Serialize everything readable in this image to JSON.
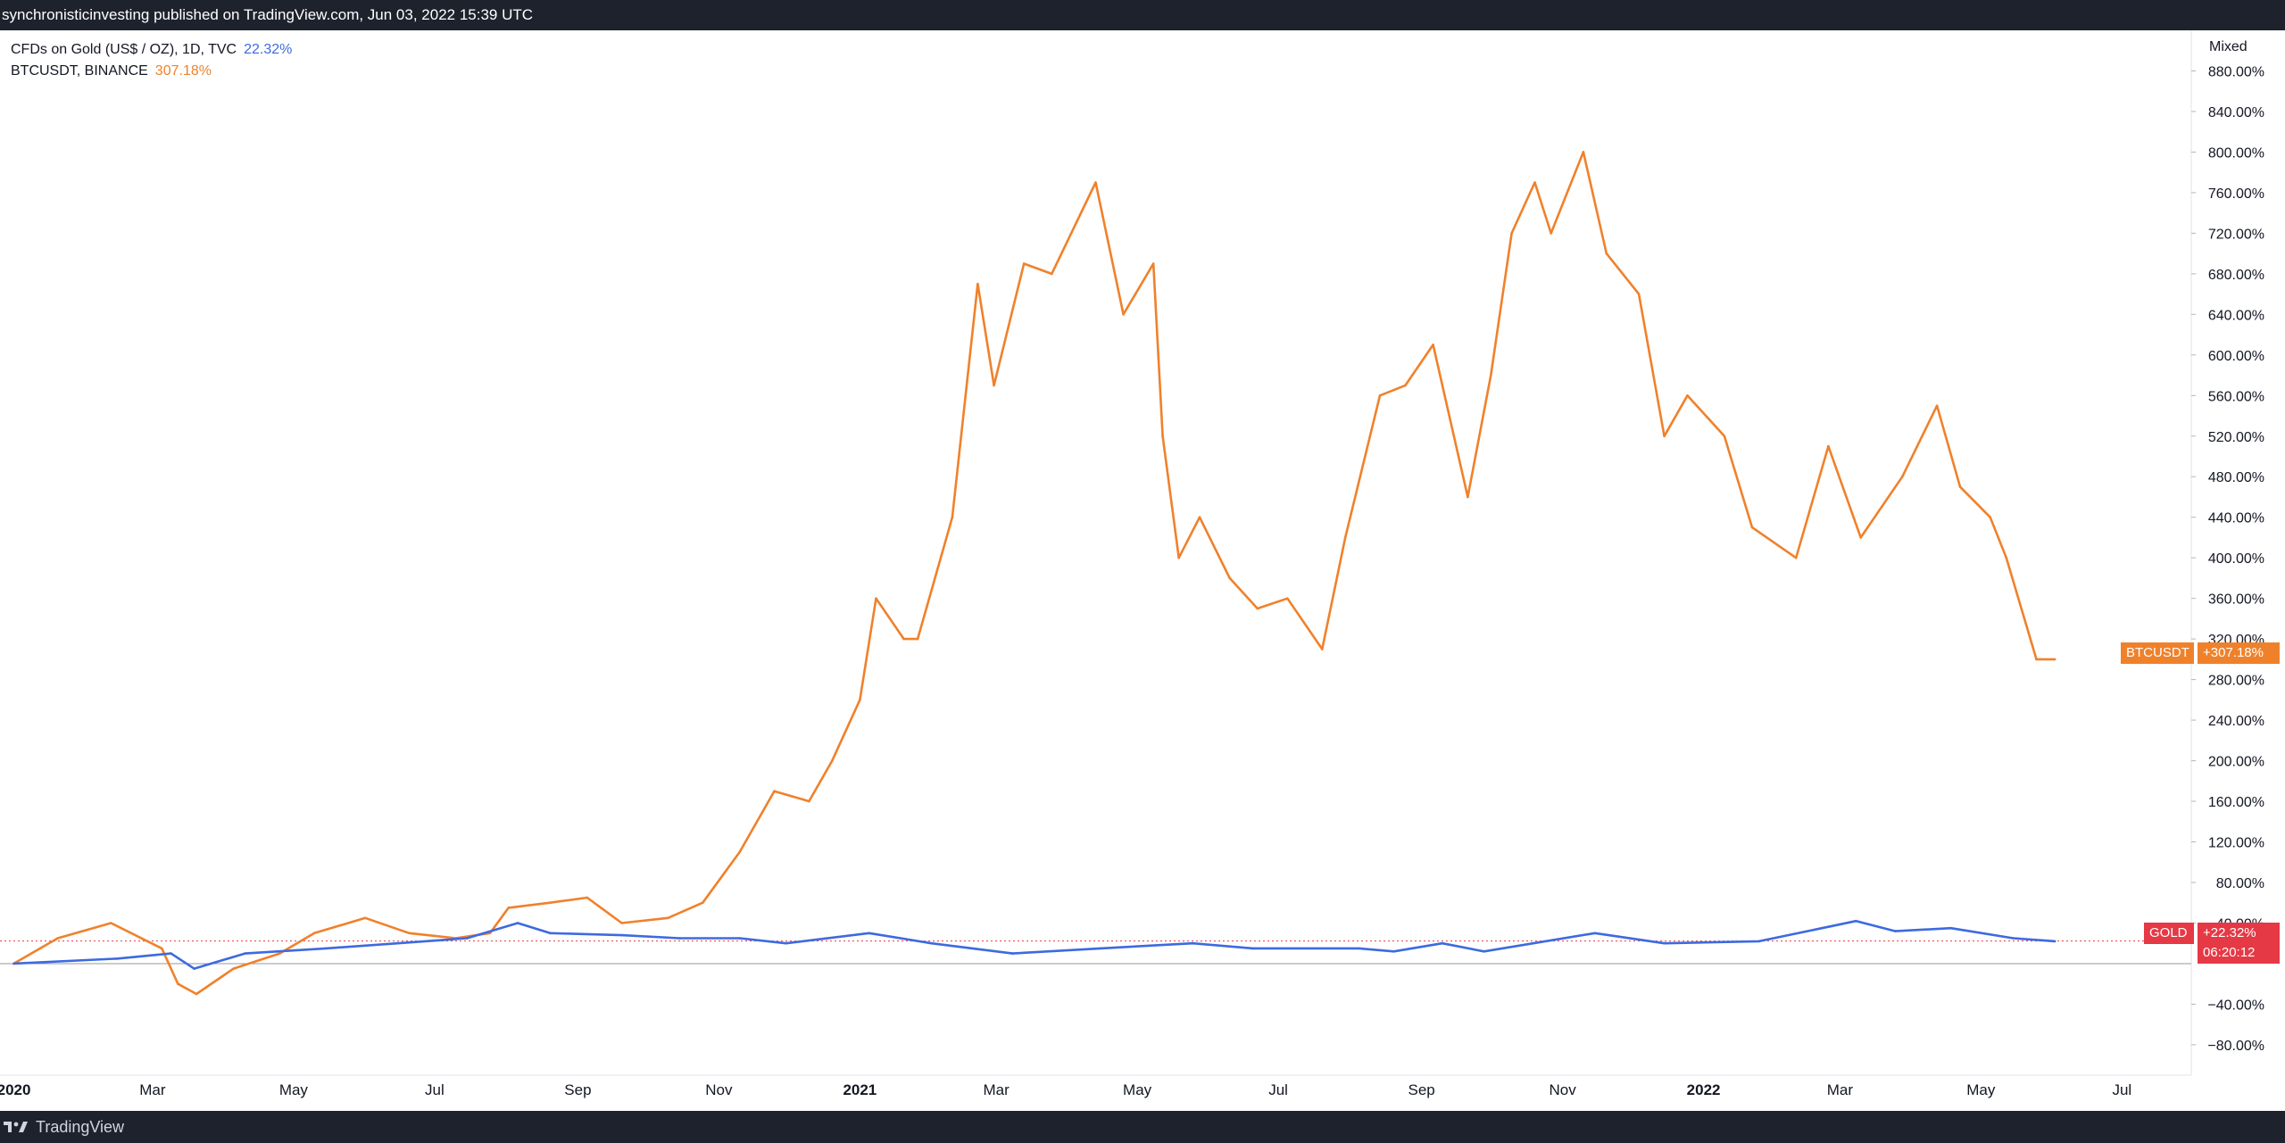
{
  "header": {
    "published_text": "synchronisticinvesting published on TradingView.com, Jun 03, 2022 15:39 UTC"
  },
  "legend": {
    "items": [
      {
        "label": "CFDs on Gold (US$ / OZ), 1D, TVC",
        "value": "22.32%",
        "color": "#3d6ae0"
      },
      {
        "label": "BTCUSDT, BINANCE",
        "value": "307.18%",
        "color": "#f0812b"
      }
    ]
  },
  "scale_mode_label": "Mixed",
  "tags": {
    "btc_name": "BTCUSDT",
    "btc_value": "+307.18%",
    "gold_name": "GOLD",
    "gold_value": "+22.32%",
    "countdown": "06:20:12"
  },
  "footer": {
    "brand": "TradingView"
  },
  "colors": {
    "btc": "#f0812b",
    "gold": "#3d6ae0",
    "gold_tag": "#e53945",
    "dark_bar": "#1e222d"
  },
  "chart_data": {
    "type": "line",
    "title": "",
    "xlabel": "",
    "ylabel": "",
    "y_unit": "%",
    "ylim": [
      -110,
      920
    ],
    "xlim": [
      "2019-12-26",
      "2022-07-31"
    ],
    "x_tick_labels": [
      "2020",
      "Mar",
      "May",
      "Jul",
      "Sep",
      "Nov",
      "2021",
      "Mar",
      "May",
      "Jul",
      "Sep",
      "Nov",
      "2022",
      "Mar",
      "May",
      "Jul"
    ],
    "x_tick_dates": [
      "2020-01-01",
      "2020-03-01",
      "2020-05-01",
      "2020-07-01",
      "2020-09-01",
      "2020-11-01",
      "2021-01-01",
      "2021-03-01",
      "2021-05-01",
      "2021-07-01",
      "2021-09-01",
      "2021-11-01",
      "2022-01-01",
      "2022-03-01",
      "2022-05-01",
      "2022-07-01"
    ],
    "y_ticks": [
      -80,
      -40,
      40,
      80,
      120,
      160,
      200,
      240,
      280,
      320,
      360,
      400,
      440,
      480,
      520,
      560,
      600,
      640,
      680,
      720,
      760,
      800,
      840,
      880
    ],
    "y_tick_labels": [
      "−80.00%",
      "−40.00%",
      "40.00%",
      "80.00%",
      "120.00%",
      "160.00%",
      "200.00%",
      "240.00%",
      "280.00%",
      "320.00%",
      "360.00%",
      "400.00%",
      "440.00%",
      "480.00%",
      "520.00%",
      "560.00%",
      "600.00%",
      "640.00%",
      "680.00%",
      "720.00%",
      "760.00%",
      "800.00%",
      "840.00%",
      "880.00%"
    ],
    "series": [
      {
        "name": "BTCUSDT, BINANCE",
        "color": "#f0812b",
        "x": [
          "2020-01-01",
          "2020-01-20",
          "2020-02-12",
          "2020-03-05",
          "2020-03-12",
          "2020-03-20",
          "2020-04-05",
          "2020-04-25",
          "2020-05-10",
          "2020-06-01",
          "2020-06-20",
          "2020-07-10",
          "2020-07-25",
          "2020-08-02",
          "2020-08-20",
          "2020-09-05",
          "2020-09-20",
          "2020-10-10",
          "2020-10-25",
          "2020-11-10",
          "2020-11-25",
          "2020-12-10",
          "2020-12-20",
          "2021-01-01",
          "2021-01-08",
          "2021-01-20",
          "2021-01-26",
          "2021-02-10",
          "2021-02-21",
          "2021-02-28",
          "2021-03-13",
          "2021-03-25",
          "2021-04-13",
          "2021-04-25",
          "2021-05-08",
          "2021-05-12",
          "2021-05-19",
          "2021-05-28",
          "2021-06-10",
          "2021-06-22",
          "2021-07-05",
          "2021-07-20",
          "2021-07-30",
          "2021-08-14",
          "2021-08-25",
          "2021-09-06",
          "2021-09-21",
          "2021-10-01",
          "2021-10-10",
          "2021-10-20",
          "2021-10-27",
          "2021-11-10",
          "2021-11-20",
          "2021-12-04",
          "2021-12-15",
          "2021-12-25",
          "2022-01-10",
          "2022-01-22",
          "2022-02-10",
          "2022-02-24",
          "2022-03-10",
          "2022-03-28",
          "2022-04-12",
          "2022-04-22",
          "2022-05-05",
          "2022-05-12",
          "2022-05-25",
          "2022-06-02"
        ],
        "values": [
          0,
          25,
          40,
          15,
          -20,
          -30,
          -5,
          10,
          30,
          45,
          30,
          25,
          30,
          55,
          60,
          65,
          40,
          45,
          60,
          110,
          170,
          160,
          200,
          260,
          360,
          320,
          320,
          440,
          670,
          570,
          690,
          680,
          770,
          640,
          690,
          520,
          400,
          440,
          380,
          350,
          360,
          310,
          420,
          560,
          570,
          610,
          460,
          580,
          720,
          770,
          720,
          800,
          700,
          660,
          520,
          560,
          520,
          430,
          400,
          510,
          420,
          480,
          550,
          470,
          440,
          400,
          300,
          300
        ]
      },
      {
        "name": "CFDs on Gold (US$ / OZ), 1D, TVC",
        "color": "#3d6ae0",
        "x": [
          "2020-01-01",
          "2020-02-15",
          "2020-03-09",
          "2020-03-19",
          "2020-04-10",
          "2020-05-15",
          "2020-06-15",
          "2020-07-15",
          "2020-08-06",
          "2020-08-20",
          "2020-09-20",
          "2020-10-15",
          "2020-11-10",
          "2020-11-30",
          "2021-01-05",
          "2021-02-01",
          "2021-03-08",
          "2021-04-15",
          "2021-05-25",
          "2021-06-20",
          "2021-08-05",
          "2021-08-20",
          "2021-09-10",
          "2021-09-28",
          "2021-11-15",
          "2021-12-15",
          "2022-01-25",
          "2022-03-08",
          "2022-03-25",
          "2022-04-18",
          "2022-05-15",
          "2022-06-02"
        ],
        "values": [
          0,
          5,
          10,
          -5,
          10,
          15,
          20,
          25,
          40,
          30,
          28,
          25,
          25,
          20,
          30,
          20,
          10,
          15,
          20,
          15,
          15,
          12,
          20,
          12,
          30,
          20,
          22,
          42,
          32,
          35,
          25,
          22
        ]
      }
    ],
    "reference_lines": [
      {
        "type": "horizontal",
        "value": 0,
        "style": "solid"
      },
      {
        "type": "horizontal",
        "value": 22.32,
        "style": "dotted",
        "color": "#e53945"
      }
    ]
  }
}
